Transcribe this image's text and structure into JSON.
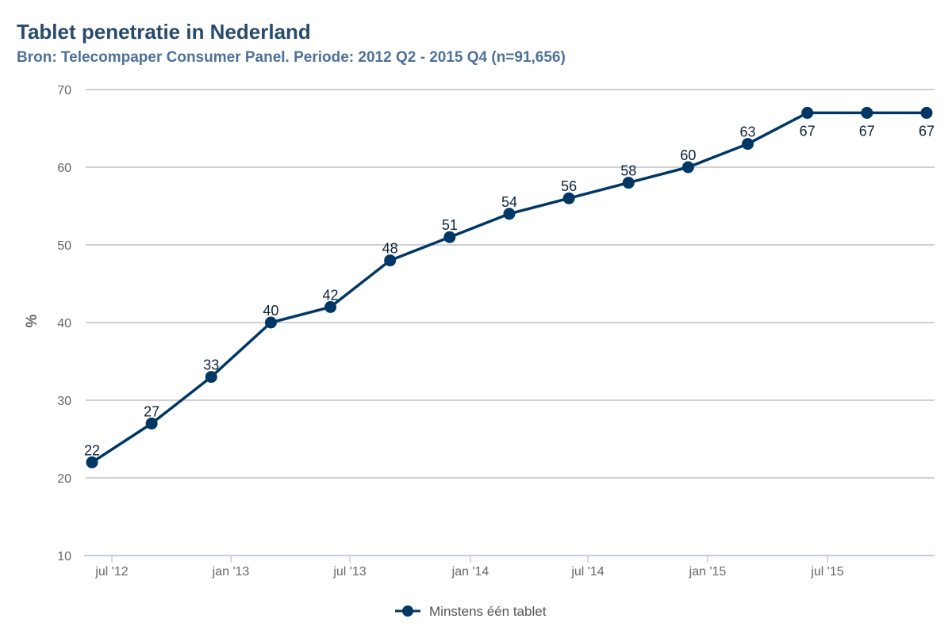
{
  "chart_data": {
    "type": "line",
    "title": "Tablet penetratie in Nederland",
    "subtitle": "Bron: Telecompaper Consumer Panel. Periode: 2012 Q2 - 2015 Q4 (n=91,656)",
    "xlabel": "",
    "ylabel": "%",
    "ylim": [
      10,
      70
    ],
    "yticks": [
      "10",
      "20",
      "30",
      "40",
      "50",
      "60",
      "70"
    ],
    "xticks": [
      "jul '12",
      "jan '13",
      "jul '13",
      "jan '14",
      "jul '14",
      "jan '15",
      "jul '15"
    ],
    "x": [
      "2012 Q2",
      "2012 Q3",
      "2012 Q4",
      "2013 Q1",
      "2013 Q2",
      "2013 Q3",
      "2013 Q4",
      "2014 Q1",
      "2014 Q2",
      "2014 Q3",
      "2014 Q4",
      "2015 Q1",
      "2015 Q2",
      "2015 Q3",
      "2015 Q4"
    ],
    "series": [
      {
        "name": "Minstens één tablet",
        "color": "#003764",
        "values": [
          22,
          27,
          33,
          40,
          42,
          48,
          51,
          54,
          56,
          58,
          60,
          63,
          67,
          67,
          67
        ]
      }
    ],
    "grid": true,
    "legend_position": "bottom-center"
  }
}
